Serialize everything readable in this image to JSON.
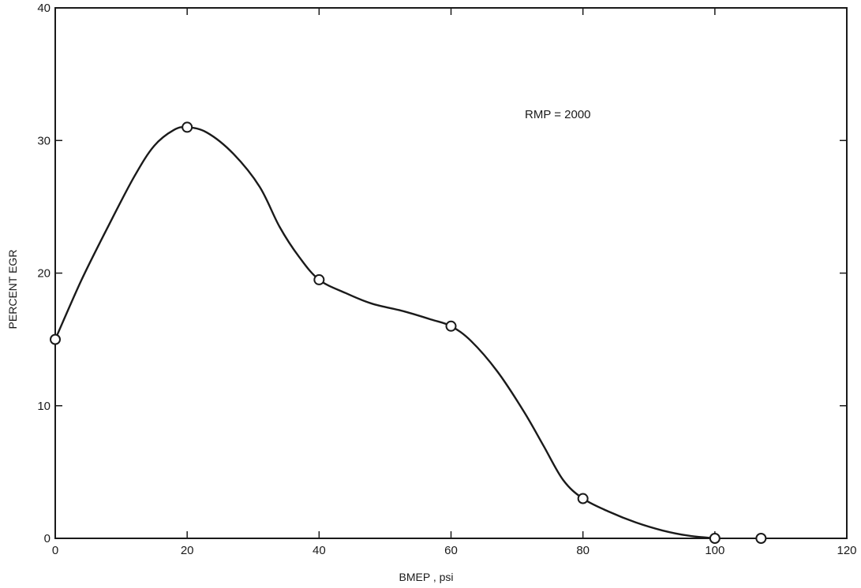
{
  "chart_data": {
    "type": "line",
    "title": "",
    "xlabel": "BMEP , psi",
    "ylabel": "PERCENT EGR",
    "xlim": [
      0,
      120
    ],
    "ylim": [
      0,
      40
    ],
    "x_ticks": [
      0,
      20,
      40,
      60,
      80,
      100,
      120
    ],
    "y_ticks": [
      0,
      10,
      20,
      30,
      40
    ],
    "grid": false,
    "legend": "none",
    "annotations": [
      {
        "text": "RMP = 2000"
      }
    ],
    "series": [
      {
        "points": [
          {
            "x": 0,
            "y": 15
          },
          {
            "x": 20,
            "y": 31
          },
          {
            "x": 40,
            "y": 19.5
          },
          {
            "x": 60,
            "y": 16
          },
          {
            "x": 80,
            "y": 3
          },
          {
            "x": 100,
            "y": 0
          },
          {
            "x": 107,
            "y": 0
          }
        ],
        "curve": [
          {
            "x": 0,
            "y": 15
          },
          {
            "x": 4,
            "y": 19.5
          },
          {
            "x": 8,
            "y": 23.5
          },
          {
            "x": 12,
            "y": 27.3
          },
          {
            "x": 15,
            "y": 29.6
          },
          {
            "x": 18,
            "y": 30.8
          },
          {
            "x": 20,
            "y": 31
          },
          {
            "x": 23,
            "y": 30.6
          },
          {
            "x": 27,
            "y": 29
          },
          {
            "x": 31,
            "y": 26.5
          },
          {
            "x": 34,
            "y": 23.5
          },
          {
            "x": 37,
            "y": 21.2
          },
          {
            "x": 40,
            "y": 19.5
          },
          {
            "x": 44,
            "y": 18.5
          },
          {
            "x": 48,
            "y": 17.7
          },
          {
            "x": 53,
            "y": 17.1
          },
          {
            "x": 57,
            "y": 16.5
          },
          {
            "x": 60,
            "y": 16
          },
          {
            "x": 63,
            "y": 14.9
          },
          {
            "x": 67,
            "y": 12.6
          },
          {
            "x": 71,
            "y": 9.6
          },
          {
            "x": 74,
            "y": 7
          },
          {
            "x": 77,
            "y": 4.4
          },
          {
            "x": 80,
            "y": 3
          },
          {
            "x": 84,
            "y": 2
          },
          {
            "x": 88,
            "y": 1.2
          },
          {
            "x": 92,
            "y": 0.6
          },
          {
            "x": 96,
            "y": 0.2
          },
          {
            "x": 100,
            "y": 0
          }
        ]
      }
    ]
  },
  "colors": {
    "ink": "#1a1a1a",
    "background": "#ffffff",
    "marker_fill": "#ffffff"
  }
}
